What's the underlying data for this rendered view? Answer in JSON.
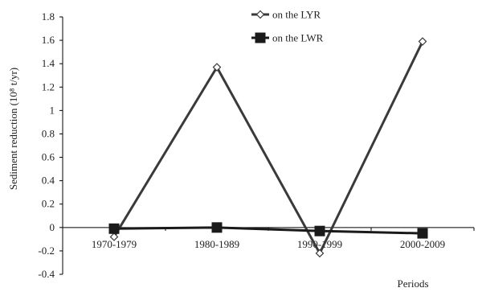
{
  "chart_data": {
    "type": "line",
    "title": "",
    "xlabel": "Periods",
    "ylabel": "Sediment reduction (10⁸ t/yr)",
    "categories": [
      "1970-1979",
      "1980-1989",
      "1990-1999",
      "2000-2009"
    ],
    "ylim": [
      -0.4,
      1.8
    ],
    "yticks": [
      "-0.4",
      "-0.2",
      "0",
      "0.2",
      "0.4",
      "0.6",
      "0.8",
      "1",
      "1.2",
      "1.4",
      "1.6",
      "1.8"
    ],
    "grid": false,
    "legend_position": "top-right",
    "series": [
      {
        "name": "on the LYR",
        "values": [
          -0.08,
          1.37,
          -0.22,
          1.59
        ],
        "marker": "diamond-open",
        "color": "#3a3a3a"
      },
      {
        "name": "on the LWR",
        "values": [
          -0.01,
          0.0,
          -0.03,
          -0.05
        ],
        "marker": "square-filled",
        "color": "#1a1a1a"
      }
    ]
  }
}
